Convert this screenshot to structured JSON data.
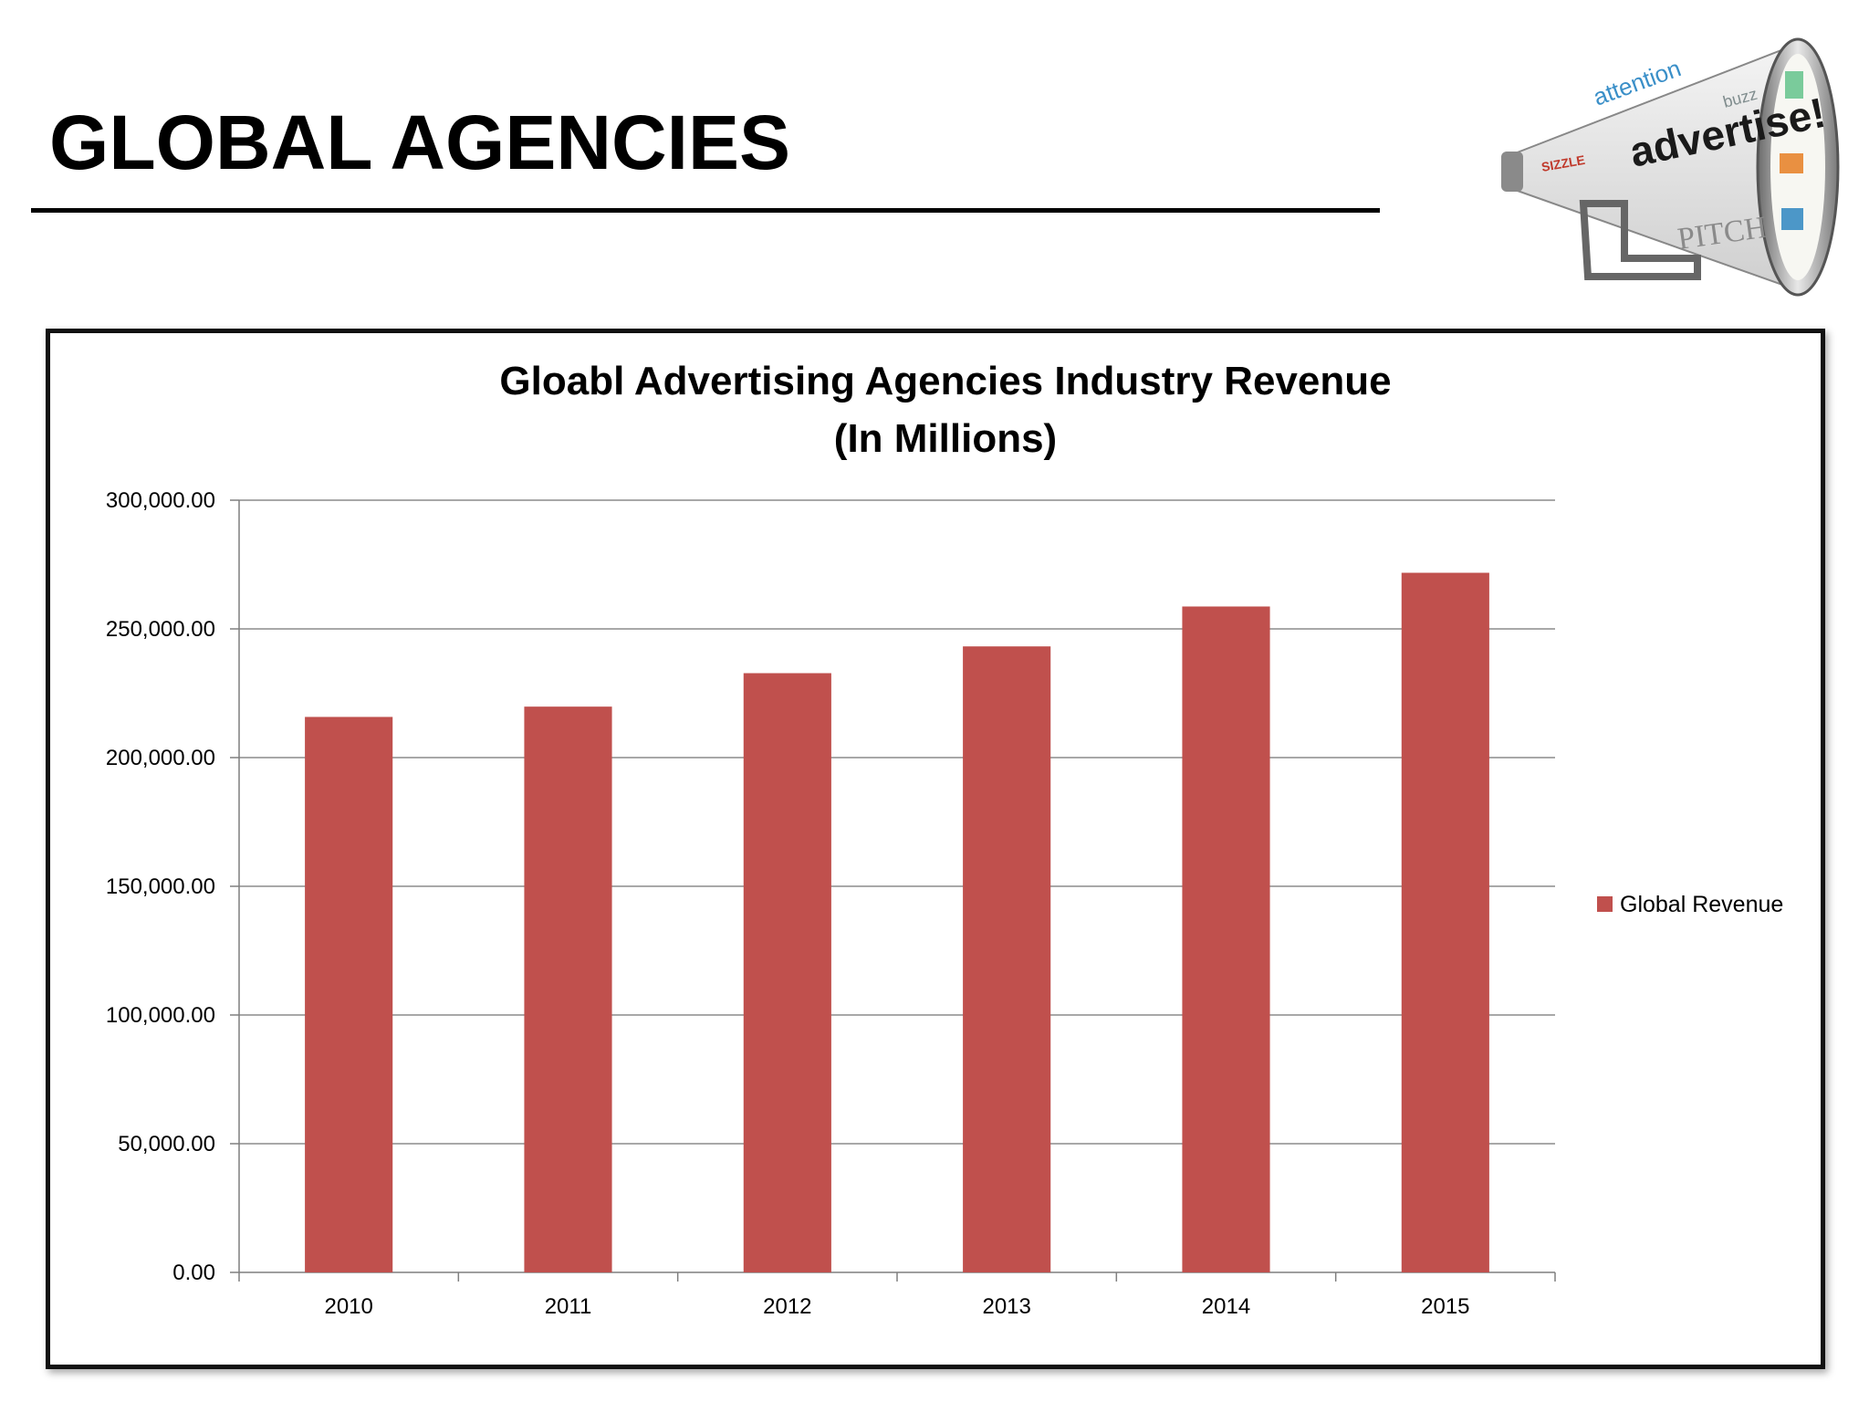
{
  "slide": {
    "title": "GLOBAL AGENCIES"
  },
  "image": {
    "icon": "megaphone-advertise-icon",
    "words": [
      "advertise!",
      "attention",
      "PITCH",
      "SIZZLE",
      "buzz"
    ]
  },
  "colors": {
    "bar": "#C0504D",
    "grid": "#8C8C8C",
    "axis": "#7F7F7F"
  },
  "chart_data": {
    "type": "bar",
    "title": "Gloabl Advertising Agencies Industry Revenue",
    "subtitle": "(In Millions)",
    "categories": [
      "2010",
      "2011",
      "2012",
      "2013",
      "2014",
      "2015"
    ],
    "series": [
      {
        "name": "Global Revenue",
        "values": [
          215800,
          219800,
          232800,
          243200,
          258700,
          271800
        ]
      }
    ],
    "y_ticks": [
      "0.00",
      "50,000.00",
      "100,000.00",
      "150,000.00",
      "200,000.00",
      "250,000.00",
      "300,000.00"
    ],
    "ylim": [
      0,
      300000
    ],
    "xlabel": "",
    "ylabel": "",
    "grid": true,
    "legend_position": "right"
  }
}
